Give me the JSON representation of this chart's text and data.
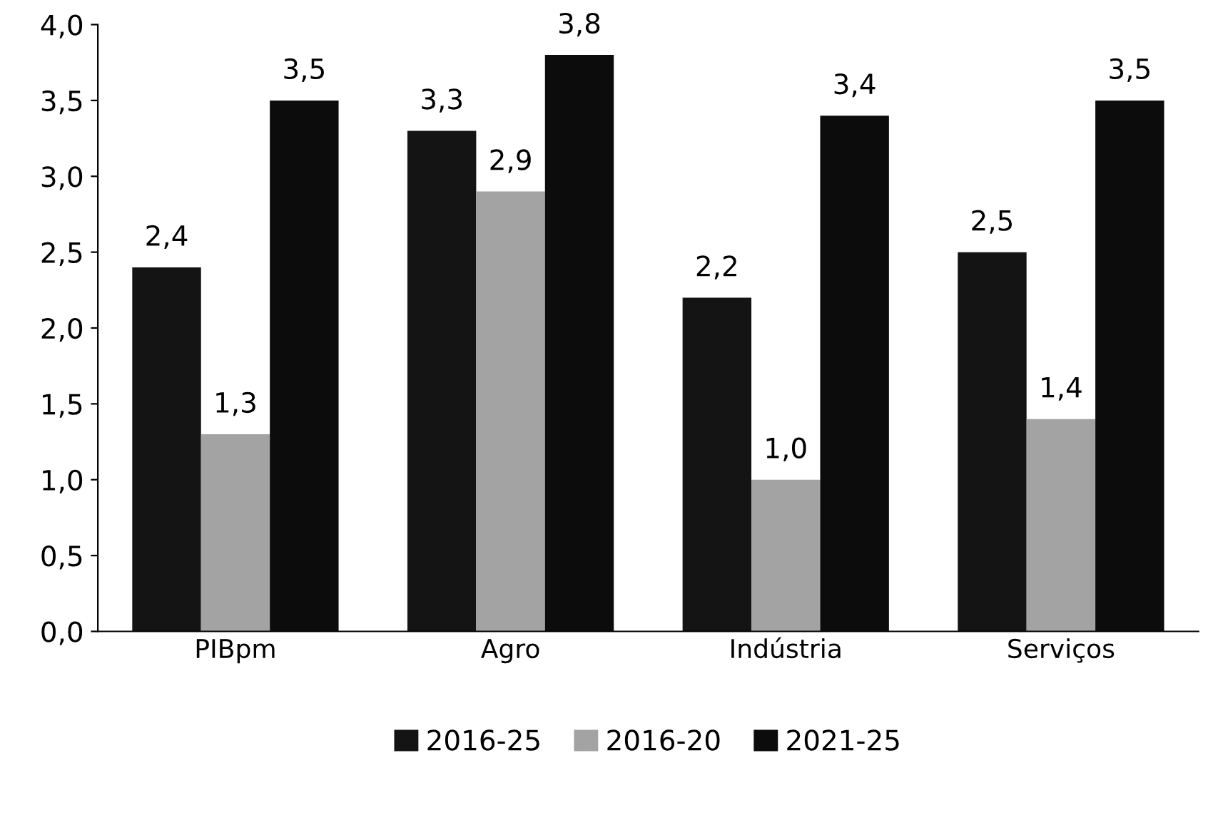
{
  "chart_data": {
    "type": "bar",
    "categories": [
      "PIBpm",
      "Agro",
      "Indústria",
      "Serviços"
    ],
    "series": [
      {
        "name": "2016-25",
        "color": "#141414",
        "values": [
          2.4,
          3.3,
          2.2,
          2.5
        ],
        "value_labels": [
          "2,4",
          "3,3",
          "2,2",
          "2,5"
        ]
      },
      {
        "name": "2016-20",
        "color": "#a3a3a3",
        "values": [
          1.3,
          2.9,
          1.0,
          1.4
        ],
        "value_labels": [
          "1,3",
          "2,9",
          "1,0",
          "1,4"
        ]
      },
      {
        "name": "2021-25",
        "color": "#0c0c0c",
        "values": [
          3.5,
          3.8,
          3.4,
          3.5
        ],
        "value_labels": [
          "3,5",
          "3,8",
          "3,4",
          "3,5"
        ]
      }
    ],
    "ylim": [
      0,
      4
    ],
    "yticks": [
      {
        "value": 0,
        "label": "0,0"
      },
      {
        "value": 0.5,
        "label": "0,5"
      },
      {
        "value": 1,
        "label": "1,0"
      },
      {
        "value": 1.5,
        "label": "1,5"
      },
      {
        "value": 2,
        "label": "2,0"
      },
      {
        "value": 2.5,
        "label": "2,5"
      },
      {
        "value": 3,
        "label": "3,0"
      },
      {
        "value": 3.5,
        "label": "3,5"
      },
      {
        "value": 4,
        "label": "4,0"
      }
    ],
    "grid": false,
    "legend": "bottom"
  }
}
